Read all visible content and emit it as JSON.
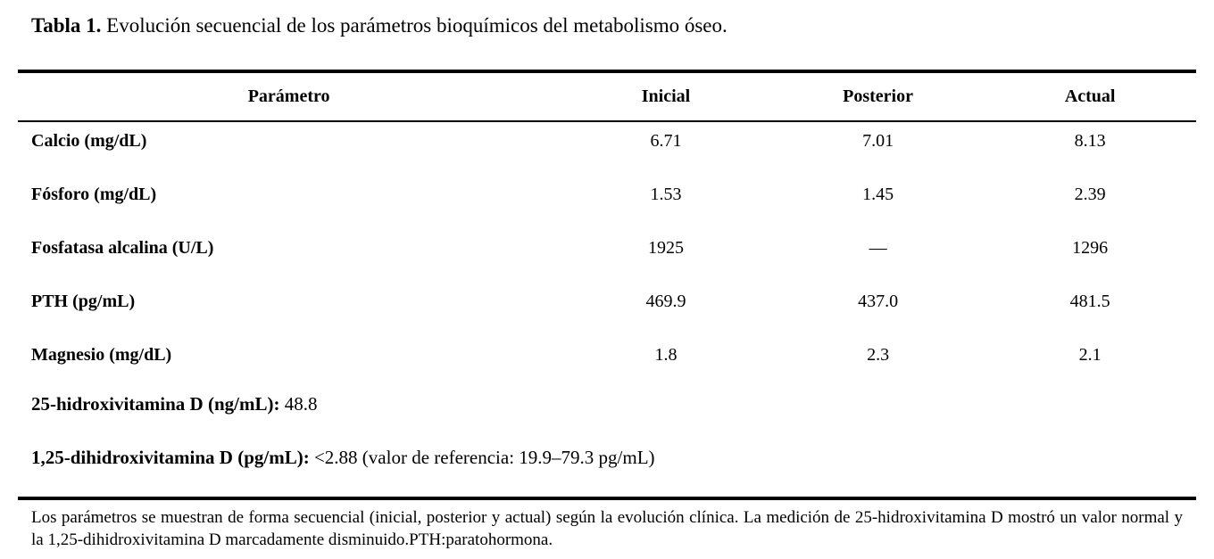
{
  "title": {
    "label": "Tabla 1.",
    "text": "Evolución secuencial de los parámetros bioquímicos del metabolismo óseo."
  },
  "table": {
    "headers": [
      "Parámetro",
      "Inicial",
      "Posterior",
      "Actual"
    ],
    "rows": [
      {
        "label": "Calcio (mg/dL)",
        "inicial": "6.71",
        "posterior": "7.01",
        "actual": "8.13"
      },
      {
        "label": "Fósforo (mg/dL)",
        "inicial": "1.53",
        "posterior": "1.45",
        "actual": "2.39"
      },
      {
        "label": "Fosfatasa alcalina (U/L)",
        "inicial": "1925",
        "posterior": "—",
        "actual": "1296"
      },
      {
        "label": "PTH (pg/mL)",
        "inicial": "469.9",
        "posterior": "437.0",
        "actual": "481.5"
      },
      {
        "label": "Magnesio (mg/dL)",
        "inicial": "1.8",
        "posterior": "2.3",
        "actual": "2.1"
      }
    ],
    "extra": [
      {
        "label": "25-hidroxivitamina D (ng/mL):",
        "value": "48.8"
      },
      {
        "label": "1,25-dihidroxivitamina D (pg/mL):",
        "value": "<2.88 (valor de referencia: 19.9–79.3 pg/mL)"
      }
    ]
  },
  "footnote": {
    "text": "Los parámetros se muestran de forma secuencial (inicial, posterior y actual) según la evolución clínica. La medición de 25-hidroxivitamina D mostró un valor normal y la 1,25-dihidroxivitamina D marcadamente disminuido.PTH:paratohormona."
  },
  "colors": {
    "text": "#000000",
    "background": "#ffffff",
    "rule": "#000000"
  }
}
